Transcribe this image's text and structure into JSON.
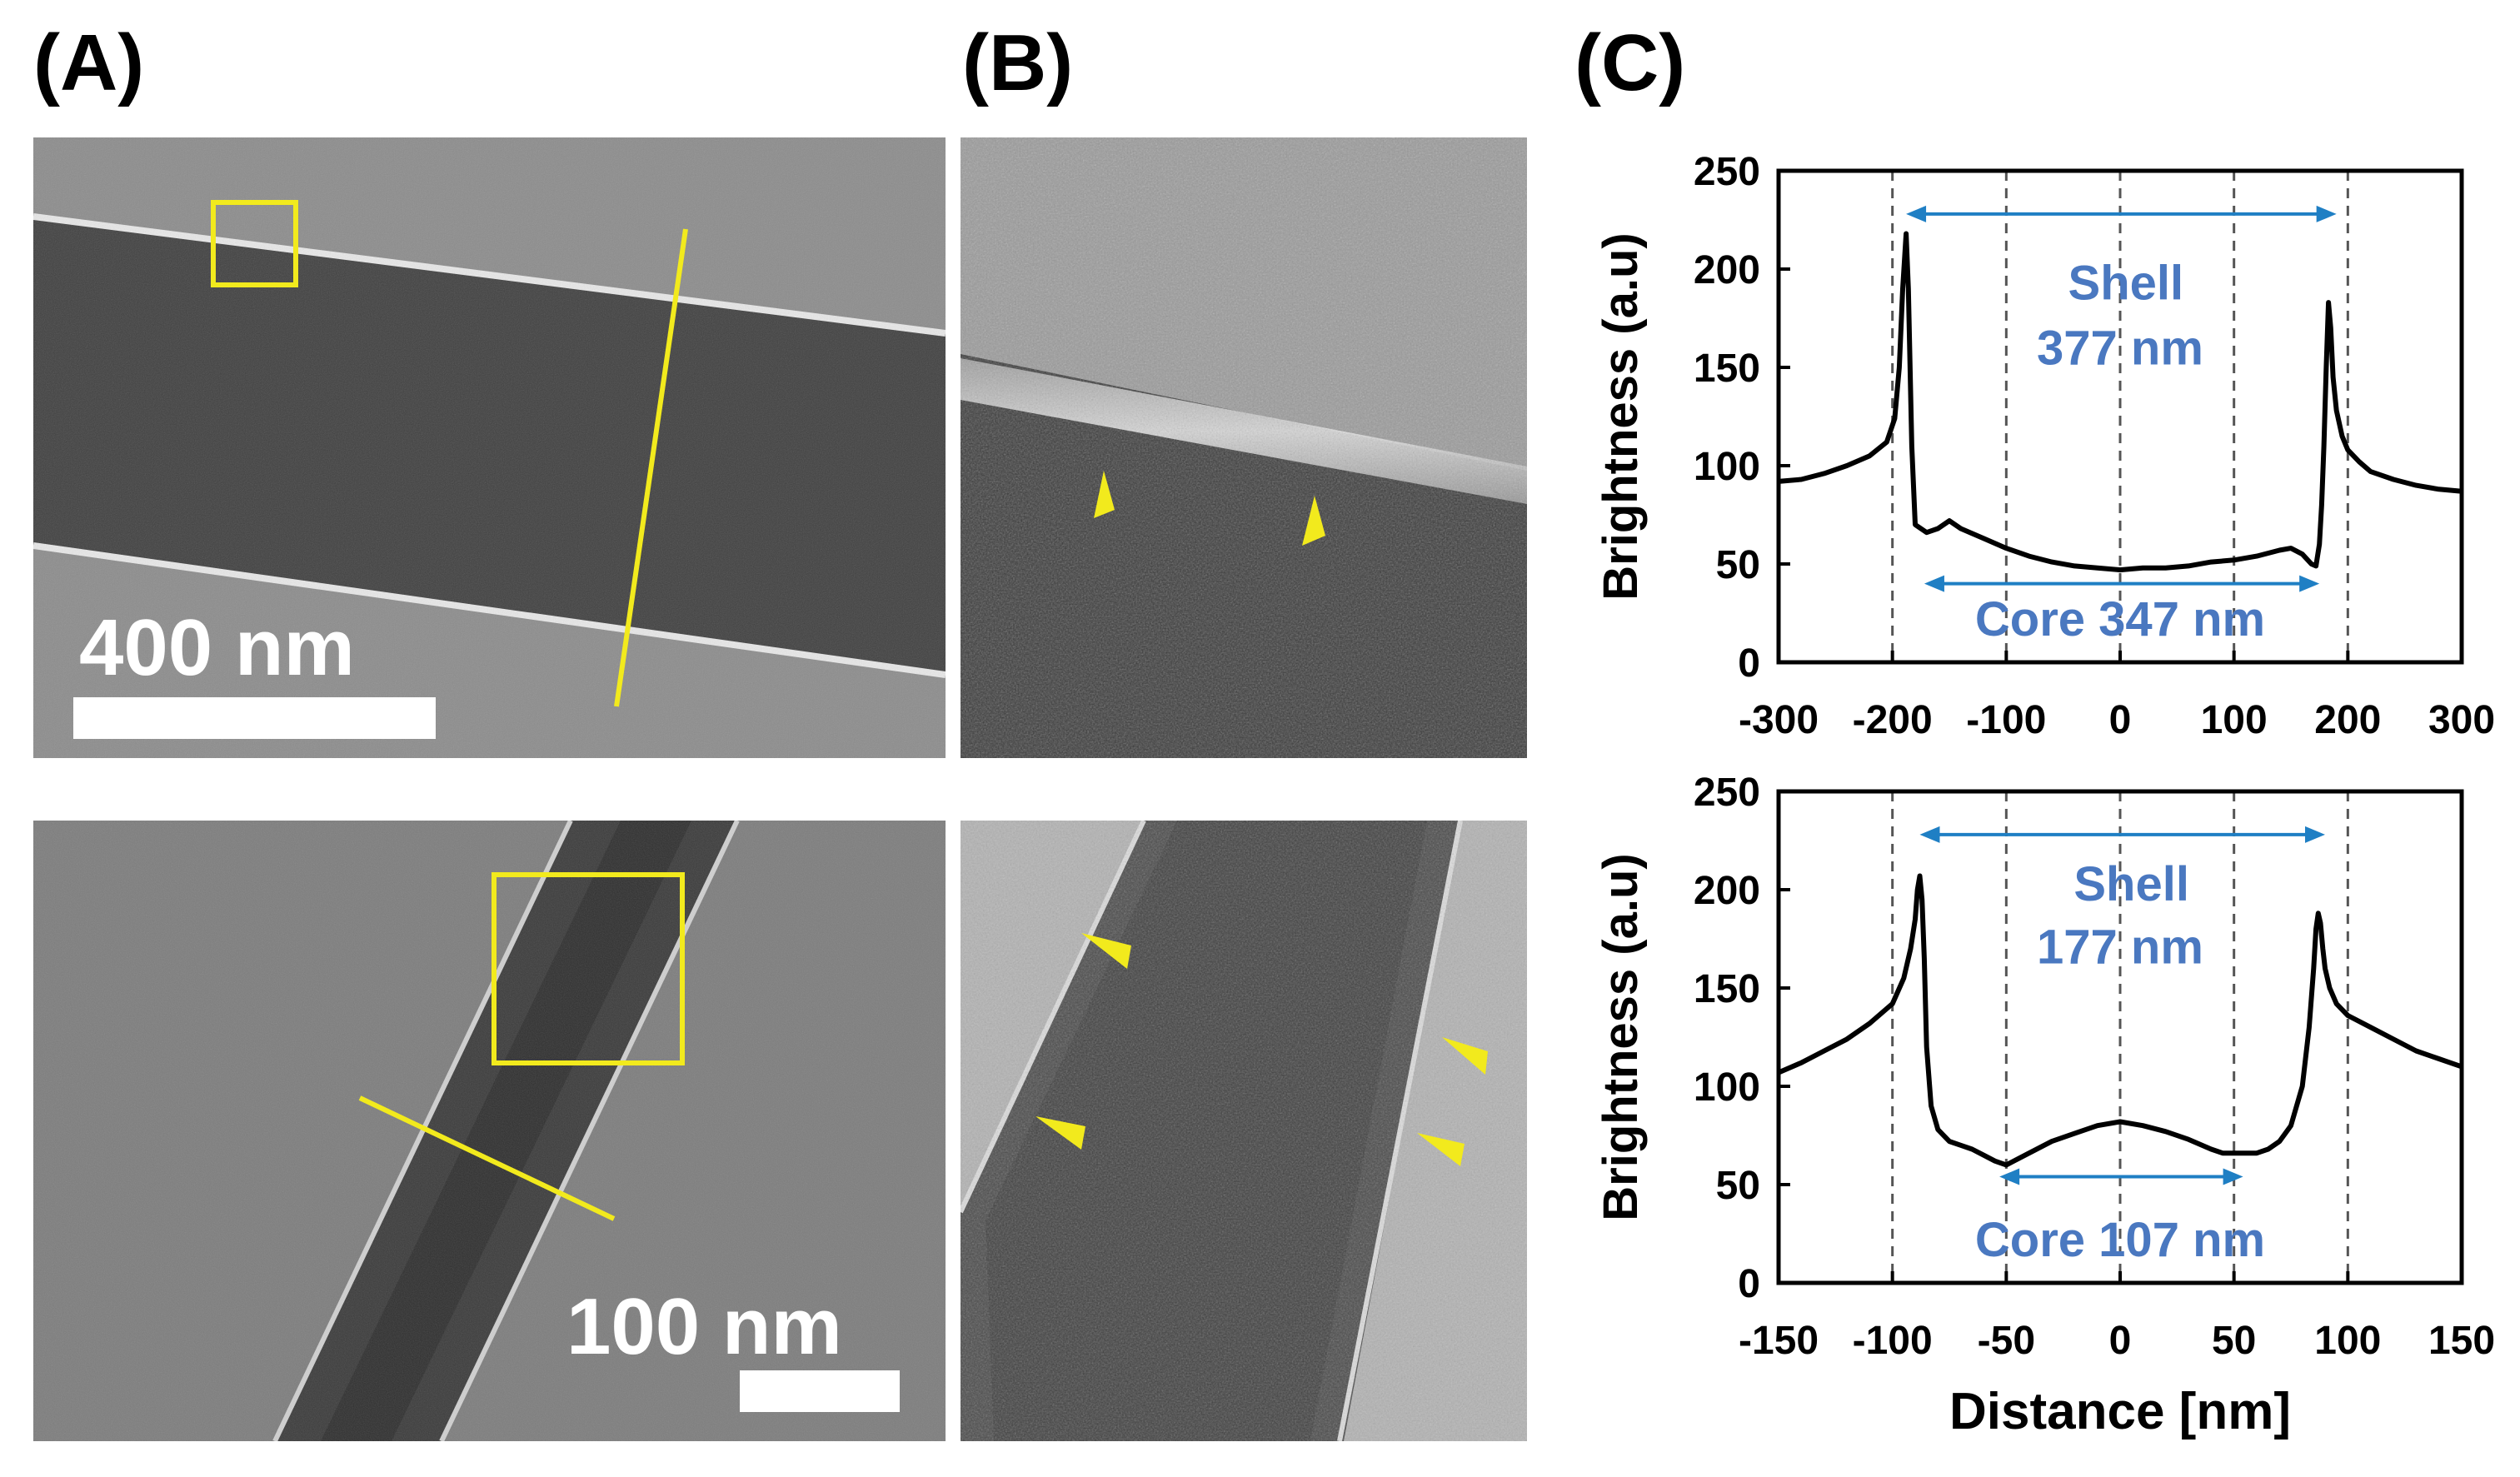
{
  "panels": {
    "a": "(A)",
    "b": "(B)",
    "c": "(C)"
  },
  "scale_bars": {
    "top": "400 nm",
    "bottom": "100 nm"
  },
  "colors": {
    "marker": "#f2ea1d",
    "arrow": "#1f7fc4",
    "annotation": "#4a78c0",
    "curve": "#000000"
  },
  "chart_data": [
    {
      "type": "line",
      "xlabel": "",
      "ylabel": "Brightness (a.u)",
      "xlim": [
        -300,
        300
      ],
      "ylim": [
        0,
        250
      ],
      "xticks": [
        "-300",
        "-200",
        "-100",
        "0",
        "100",
        "200",
        "300"
      ],
      "yticks": [
        "0",
        "50",
        "100",
        "150",
        "200",
        "250"
      ],
      "guide_lines_x": [
        -200,
        -100,
        0,
        100,
        200
      ],
      "x": [
        -300,
        -280,
        -260,
        -240,
        -220,
        -205,
        -198,
        -194,
        -191,
        -188,
        -186,
        -183,
        -180,
        -170,
        -160,
        -150,
        -140,
        -120,
        -100,
        -80,
        -60,
        -40,
        -20,
        0,
        20,
        40,
        60,
        80,
        100,
        120,
        140,
        150,
        160,
        168,
        172,
        175,
        177,
        179,
        181,
        183,
        185,
        187,
        190,
        195,
        200,
        210,
        220,
        240,
        260,
        280,
        300
      ],
      "y": [
        92,
        93,
        96,
        100,
        105,
        112,
        124,
        150,
        190,
        218,
        190,
        110,
        70,
        66,
        68,
        72,
        68,
        63,
        58,
        54,
        51,
        49,
        48,
        47,
        48,
        48,
        49,
        51,
        52,
        54,
        57,
        58,
        55,
        50,
        49,
        60,
        80,
        110,
        150,
        183,
        170,
        145,
        128,
        115,
        108,
        102,
        97,
        93,
        90,
        88,
        87
      ],
      "annotations": [
        {
          "text": "Shell",
          "x": 5,
          "y": 193
        },
        {
          "text": "377 nm",
          "x": 0,
          "y": 160
        },
        {
          "text": "Core  347 nm",
          "x": 0,
          "y": 22
        }
      ],
      "spans": [
        {
          "label": "Shell 377 nm",
          "from": -188,
          "to": 190,
          "y": 228
        },
        {
          "label": "Core 347 nm",
          "from": -172,
          "to": 175,
          "y": 40
        }
      ]
    },
    {
      "type": "line",
      "xlabel": "Distance [nm]",
      "ylabel": "Brightness (a.u)",
      "xlim": [
        -150,
        150
      ],
      "ylim": [
        0,
        250
      ],
      "xticks": [
        "-150",
        "-100",
        "-50",
        "0",
        "50",
        "100",
        "150"
      ],
      "yticks": [
        "0",
        "50",
        "100",
        "150",
        "200",
        "250"
      ],
      "guide_lines_x": [
        -100,
        -50,
        0,
        50,
        100
      ],
      "x": [
        -150,
        -140,
        -130,
        -120,
        -110,
        -100,
        -95,
        -92,
        -90,
        -89,
        -88,
        -87,
        -86,
        -85,
        -83,
        -80,
        -75,
        -70,
        -65,
        -60,
        -55,
        -50,
        -40,
        -30,
        -20,
        -10,
        0,
        10,
        20,
        30,
        40,
        45,
        50,
        55,
        60,
        65,
        70,
        75,
        80,
        83,
        85,
        86,
        87,
        88,
        89,
        90,
        92,
        95,
        100,
        110,
        120,
        130,
        140,
        150
      ],
      "y": [
        107,
        112,
        118,
        124,
        132,
        142,
        155,
        170,
        185,
        200,
        207,
        195,
        165,
        120,
        90,
        78,
        72,
        70,
        68,
        65,
        62,
        60,
        66,
        72,
        76,
        80,
        82,
        80,
        77,
        73,
        68,
        66,
        66,
        66,
        66,
        68,
        72,
        80,
        100,
        130,
        160,
        180,
        188,
        183,
        170,
        160,
        150,
        142,
        136,
        130,
        124,
        118,
        114,
        110
      ],
      "annotations": [
        {
          "text": "Shell",
          "x": 5,
          "y": 203
        },
        {
          "text": "177 nm",
          "x": 0,
          "y": 171
        },
        {
          "text": "Core  107 nm",
          "x": 0,
          "y": 22
        }
      ],
      "spans": [
        {
          "label": "Shell 177 nm",
          "from": -88,
          "to": 90,
          "y": 228
        },
        {
          "label": "Core 107 nm",
          "from": -53,
          "to": 54,
          "y": 54
        }
      ]
    }
  ]
}
